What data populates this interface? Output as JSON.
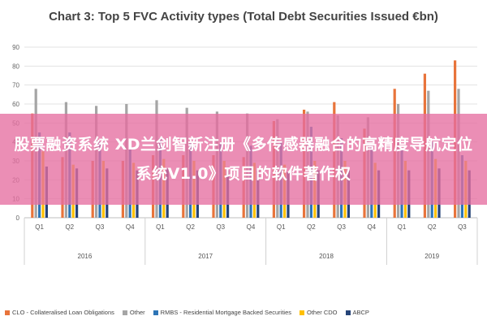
{
  "chart_data": {
    "type": "bar",
    "title": "Chart 3: Top 5 FVC Activity types (Total Debt Securities Issued €bn)",
    "categories": [
      "Q1",
      "Q2",
      "Q3",
      "Q4",
      "Q1",
      "Q2",
      "Q3",
      "Q4",
      "Q1",
      "Q2",
      "Q3",
      "Q4",
      "Q1",
      "Q2",
      "Q3"
    ],
    "years": [
      {
        "label": "2016",
        "quarters": 4
      },
      {
        "label": "2017",
        "quarters": 4
      },
      {
        "label": "2018",
        "quarters": 4
      },
      {
        "label": "2019",
        "quarters": 3
      }
    ],
    "yticks": [
      0,
      10,
      20,
      30,
      40,
      50,
      60,
      70,
      80,
      90
    ],
    "ylim": [
      0,
      90
    ],
    "grid": true,
    "legend_position": "bottom",
    "series": [
      {
        "name": "CLO - Collateralised Loan Obligations",
        "color": "#e8743b",
        "values": [
          55,
          32,
          30,
          30,
          33,
          33,
          33,
          32,
          51,
          57,
          61,
          47,
          68,
          76,
          83
        ]
      },
      {
        "name": "Other",
        "color": "#a5a5a5",
        "values": [
          68,
          61,
          59,
          60,
          62,
          58,
          56,
          55,
          52,
          56,
          54,
          53,
          60,
          67,
          68
        ]
      },
      {
        "name": "RMBS - Residential Mortgage Backed Securities",
        "color": "#2e75b6",
        "values": [
          45,
          45,
          40,
          38,
          42,
          40,
          39,
          38,
          40,
          48,
          42,
          38,
          36,
          40,
          33
        ]
      },
      {
        "name": "Other CDO",
        "color": "#ffc000",
        "values": [
          35,
          28,
          30,
          29,
          31,
          30,
          30,
          29,
          28,
          30,
          30,
          29,
          30,
          31,
          30
        ]
      },
      {
        "name": "ABCP",
        "color": "#264478",
        "values": [
          27,
          26,
          26,
          25,
          26,
          25,
          25,
          25,
          24,
          25,
          25,
          25,
          25,
          26,
          25
        ]
      }
    ]
  },
  "banner": {
    "text": "股票融资系统 XD兰剑智新注册《多传感器融合的高精度导航定位系统V1.0》项目的软件著作权"
  }
}
